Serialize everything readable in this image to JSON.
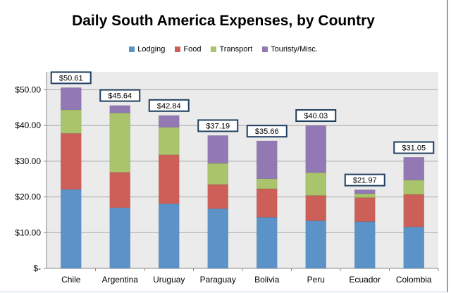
{
  "chart_data": {
    "type": "bar",
    "stacked": true,
    "title": "Daily South America Expenses, by Country",
    "xlabel": "",
    "ylabel": "",
    "ylim": [
      0,
      55
    ],
    "yticks": [
      0,
      10,
      20,
      30,
      40,
      50
    ],
    "ytick_labels": [
      "$-",
      "$10.00",
      "$20.00",
      "$30.00",
      "$40.00",
      "$50.00"
    ],
    "grid": true,
    "legend_position": "top",
    "categories": [
      "Chile",
      "Argentina",
      "Uruguay",
      "Paraguay",
      "Bolivia",
      "Peru",
      "Ecuador",
      "Colombia"
    ],
    "series": [
      {
        "name": "Lodging",
        "color": "#5b93c8",
        "values": [
          22.1,
          17.0,
          18.1,
          16.7,
          14.3,
          13.3,
          13.1,
          11.6
        ]
      },
      {
        "name": "Food",
        "color": "#cc6058",
        "values": [
          15.7,
          9.9,
          13.7,
          6.8,
          8.0,
          7.1,
          6.7,
          9.1
        ]
      },
      {
        "name": "Transport",
        "color": "#a9c46a",
        "values": [
          6.6,
          16.6,
          7.7,
          5.9,
          2.8,
          6.4,
          1.1,
          4.0
        ]
      },
      {
        "name": "Touristy/Misc.",
        "color": "#9279b3",
        "values": [
          6.2,
          2.1,
          3.3,
          7.8,
          10.6,
          13.2,
          1.1,
          6.4
        ]
      }
    ],
    "totals": [
      50.61,
      45.64,
      42.84,
      37.19,
      35.66,
      40.03,
      21.97,
      31.05
    ],
    "total_labels": [
      "$50.61",
      "$45.64",
      "$42.84",
      "$37.19",
      "$35.66",
      "$40.03",
      "$21.97",
      "$31.05"
    ]
  }
}
